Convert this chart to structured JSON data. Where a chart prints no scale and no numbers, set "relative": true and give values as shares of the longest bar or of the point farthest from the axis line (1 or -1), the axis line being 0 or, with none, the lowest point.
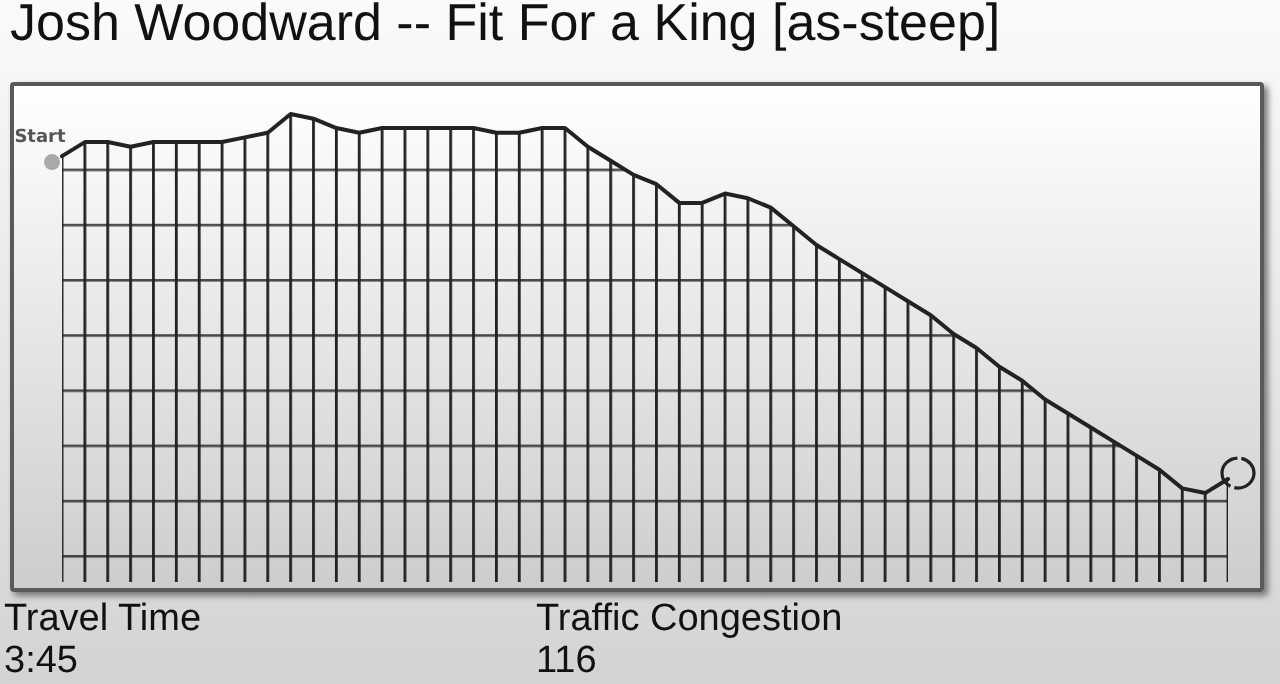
{
  "chart_data": {
    "type": "area",
    "title": "Josh Woodward -- Fit For a King [as-steep]",
    "relative": true,
    "categories": [
      null,
      null,
      null,
      null,
      null,
      null,
      null,
      null,
      null,
      null,
      null,
      null,
      null,
      null,
      null,
      null,
      null,
      null,
      null,
      null,
      null,
      null,
      null,
      null,
      null,
      null,
      null,
      null,
      null,
      null,
      null,
      null,
      null,
      null,
      null,
      null,
      null,
      null,
      null,
      null,
      null,
      null,
      null,
      null,
      null,
      null,
      null,
      null,
      null,
      null,
      null,
      null
    ],
    "values": [
      0.91,
      0.94,
      0.94,
      0.93,
      0.94,
      0.94,
      0.94,
      0.94,
      0.95,
      0.96,
      1,
      0.99,
      0.97,
      0.96,
      0.97,
      0.97,
      0.97,
      0.97,
      0.97,
      0.96,
      0.96,
      0.97,
      0.97,
      0.93,
      0.9,
      0.87,
      0.85,
      0.81,
      0.81,
      0.83,
      0.82,
      0.8,
      0.76,
      0.72,
      0.69,
      0.66,
      0.63,
      0.6,
      0.57,
      0.53,
      0.5,
      0.46,
      0.43,
      0.39,
      0.36,
      0.33,
      0.3,
      0.27,
      0.24,
      0.2,
      0.19,
      0.22
    ],
    "color": "#222222",
    "annotations": [
      "Start",
      "Travel Time",
      "3:45",
      "Traffic Congestion",
      "116"
    ]
  }
}
